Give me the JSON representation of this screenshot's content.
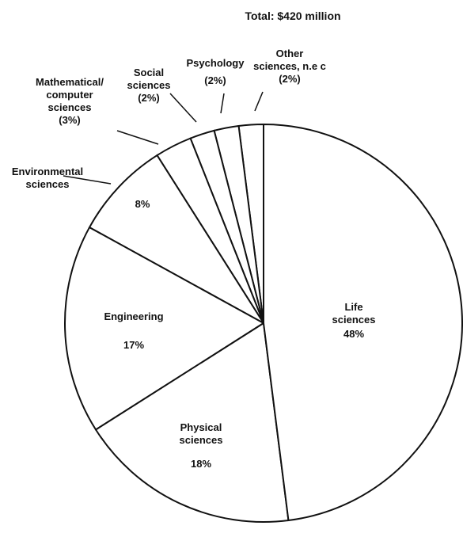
{
  "chart_data": {
    "type": "pie",
    "title": "Total: $420 million",
    "categories": [
      "Life\nsciences",
      "Physical\nsciences",
      "Engineering",
      "Environmental\nsciences",
      "Mathematical/\ncomputer\nsciences",
      "Social\nsciences",
      "Psychology",
      "Other\nsciences, n.e c"
    ],
    "values": [
      48,
      18,
      17,
      8,
      3,
      2,
      2,
      2
    ],
    "value_labels": [
      "48%",
      "18%",
      "17%",
      "8%",
      "(3%)",
      "(2%)",
      "(2%)",
      "(2%)"
    ],
    "color": "#ffffff"
  }
}
